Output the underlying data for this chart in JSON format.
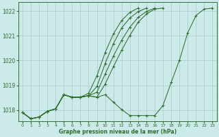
{
  "xlabel": "Graphe pression niveau de la mer (hPa)",
  "ylabel": "",
  "bg_color": "#cdeaea",
  "grid_color": "#b8d8d8",
  "line_color": "#2d6e2d",
  "x_ticks": [
    0,
    1,
    2,
    3,
    4,
    5,
    6,
    7,
    8,
    9,
    10,
    11,
    12,
    13,
    14,
    15,
    16,
    17,
    18,
    19,
    20,
    21,
    22,
    23
  ],
  "ylim": [
    1017.55,
    1022.35
  ],
  "yticks": [
    1018,
    1019,
    1020,
    1021,
    1022
  ],
  "lines": [
    [
      1017.9,
      1017.65,
      1017.72,
      1017.95,
      1018.05,
      1018.62,
      1018.52,
      1018.52,
      1018.58,
      1018.52,
      1018.62,
      1018.32,
      1018.02,
      1017.78,
      1017.78,
      1017.78,
      1017.78,
      1018.18,
      1019.12,
      1020.02,
      1021.12,
      1021.82,
      1022.08,
      1022.12
    ],
    [
      1017.9,
      1017.65,
      1017.72,
      1017.95,
      1018.05,
      1018.62,
      1018.52,
      1018.52,
      1018.58,
      1018.52,
      1019.05,
      1019.75,
      1020.42,
      1021.02,
      1021.55,
      1021.88,
      1022.08,
      1022.12,
      null,
      null,
      null,
      null,
      null,
      null
    ],
    [
      1017.9,
      1017.65,
      1017.72,
      1017.95,
      1018.05,
      1018.62,
      1018.52,
      1018.52,
      1018.58,
      1018.72,
      1019.45,
      1020.18,
      1020.82,
      1021.35,
      1021.75,
      1021.98,
      1022.12,
      null,
      null,
      null,
      null,
      null,
      null,
      null
    ],
    [
      1017.9,
      1017.65,
      1017.72,
      1017.95,
      1018.05,
      1018.62,
      1018.52,
      1018.52,
      1018.58,
      1018.95,
      1019.88,
      1020.68,
      1021.32,
      1021.72,
      1021.98,
      1022.12,
      null,
      null,
      null,
      null,
      null,
      null,
      null,
      null
    ],
    [
      1017.9,
      1017.65,
      1017.72,
      1017.95,
      1018.05,
      1018.62,
      1018.52,
      1018.52,
      1018.68,
      1019.38,
      1020.32,
      1021.08,
      1021.62,
      1021.95,
      1022.12,
      null,
      null,
      null,
      null,
      null,
      null,
      null,
      null,
      null
    ]
  ]
}
